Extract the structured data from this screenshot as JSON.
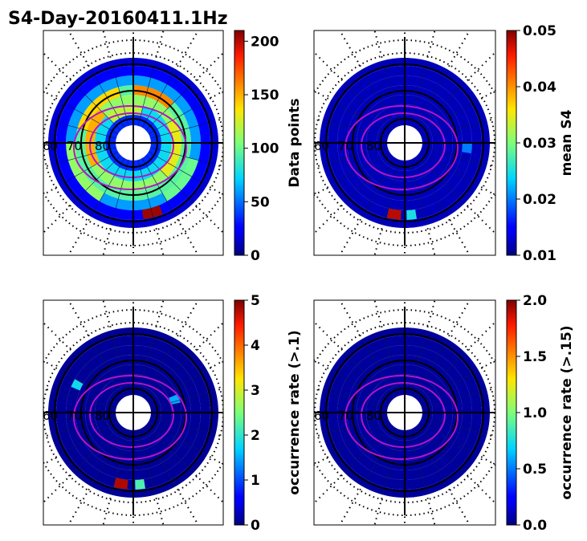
{
  "chart_data": {
    "title": "S4-Day-20160411.1Hz",
    "type": "heatmap",
    "projection": "polar (magnetic latitude / local time)",
    "lat_labels": [
      "60",
      "70",
      "80"
    ],
    "panels": [
      {
        "id": "data-points",
        "colorbar_label": "Data points",
        "vmin": 0,
        "vmax": 210,
        "ticks": [
          0,
          50,
          100,
          150,
          200
        ],
        "tick_labels": [
          "0",
          "50",
          "100",
          "150",
          "200"
        ],
        "cells": [
          {
            "ring": 0,
            "from": 0,
            "to": 24,
            "value": 35
          },
          {
            "ring": 1,
            "from": 0,
            "to": 24,
            "value": 75
          },
          {
            "ring": 1,
            "from": 9,
            "to": 13,
            "value": 120
          },
          {
            "ring": 2,
            "from": 0,
            "to": 24,
            "value": 110
          },
          {
            "ring": 2,
            "from": 4,
            "to": 9,
            "value": 150
          },
          {
            "ring": 2,
            "from": 16,
            "to": 21,
            "value": 130
          },
          {
            "ring": 3,
            "from": 0,
            "to": 24,
            "value": 95
          },
          {
            "ring": 3,
            "from": 7,
            "to": 11,
            "value": 140
          },
          {
            "ring": 3,
            "from": 12,
            "to": 15,
            "value": 160
          },
          {
            "ring": 4,
            "from": 0,
            "to": 24,
            "value": 60
          },
          {
            "ring": 4,
            "from": 2,
            "to": 6,
            "value": 110
          },
          {
            "ring": 4,
            "from": 19,
            "to": 22,
            "value": 100
          },
          {
            "ring": 5,
            "from": 0,
            "to": 24,
            "value": 25
          },
          {
            "ring": 5,
            "from": 22.5,
            "to": 23.5,
            "value": 205
          },
          {
            "ring": 6,
            "from": 0,
            "to": 24,
            "value": 15
          }
        ]
      },
      {
        "id": "mean-s4",
        "colorbar_label": "mean S4",
        "vmin": 0.01,
        "vmax": 0.05,
        "ticks": [
          0.01,
          0.02,
          0.03,
          0.04,
          0.05
        ],
        "tick_labels": [
          "0.01",
          "0.02",
          "0.03",
          "0.04",
          "0.05"
        ],
        "cells": [
          {
            "ring": 0,
            "from": 0,
            "to": 24,
            "value": 0.012
          },
          {
            "ring": 1,
            "from": 0,
            "to": 24,
            "value": 0.012
          },
          {
            "ring": 2,
            "from": 0,
            "to": 24,
            "value": 0.012
          },
          {
            "ring": 3,
            "from": 0,
            "to": 24,
            "value": 0.012
          },
          {
            "ring": 4,
            "from": 0,
            "to": 24,
            "value": 0.012
          },
          {
            "ring": 4,
            "from": 18,
            "to": 18.6,
            "value": 0.02
          },
          {
            "ring": 5,
            "from": 0,
            "to": 24,
            "value": 0.012
          },
          {
            "ring": 5,
            "from": 0.2,
            "to": 0.9,
            "value": 0.048
          },
          {
            "ring": 5,
            "from": 23.4,
            "to": 23.9,
            "value": 0.025
          },
          {
            "ring": 6,
            "from": 0,
            "to": 24,
            "value": 0.012
          }
        ]
      },
      {
        "id": "occurrence-1",
        "colorbar_label": "occurrence rate (>.1)",
        "vmin": 0,
        "vmax": 5,
        "ticks": [
          0,
          1,
          2,
          3,
          4,
          5
        ],
        "tick_labels": [
          "0",
          "1",
          "2",
          "3",
          "4",
          "5"
        ],
        "cells": [
          {
            "ring": 0,
            "from": 0,
            "to": 24,
            "value": 0.1
          },
          {
            "ring": 1,
            "from": 0,
            "to": 24,
            "value": 0.1
          },
          {
            "ring": 2,
            "from": 0,
            "to": 24,
            "value": 0.1
          },
          {
            "ring": 2,
            "from": 16.5,
            "to": 17.2,
            "value": 1.5
          },
          {
            "ring": 3,
            "from": 0,
            "to": 24,
            "value": 0.1
          },
          {
            "ring": 4,
            "from": 0,
            "to": 24,
            "value": 0.1
          },
          {
            "ring": 4,
            "from": 7.5,
            "to": 8,
            "value": 1.8
          },
          {
            "ring": 5,
            "from": 0,
            "to": 24,
            "value": 0.1
          },
          {
            "ring": 5,
            "from": 0.3,
            "to": 1,
            "value": 4.8
          },
          {
            "ring": 5,
            "from": 23.4,
            "to": 23.9,
            "value": 2.2
          },
          {
            "ring": 6,
            "from": 0,
            "to": 24,
            "value": 0.1
          }
        ]
      },
      {
        "id": "occurrence-15",
        "colorbar_label": "occurrence rate (>.15)",
        "vmin": 0,
        "vmax": 2,
        "ticks": [
          0,
          0.5,
          1,
          1.5,
          2
        ],
        "tick_labels": [
          "0.0",
          "0.5",
          "1.0",
          "1.5",
          "2.0"
        ],
        "cells": [
          {
            "ring": 0,
            "from": 0,
            "to": 24,
            "value": 0.05
          },
          {
            "ring": 1,
            "from": 0,
            "to": 24,
            "value": 0.05
          },
          {
            "ring": 2,
            "from": 0,
            "to": 24,
            "value": 0.05
          },
          {
            "ring": 3,
            "from": 0,
            "to": 24,
            "value": 0.05
          },
          {
            "ring": 4,
            "from": 0,
            "to": 24,
            "value": 0.05
          },
          {
            "ring": 5,
            "from": 0,
            "to": 24,
            "value": 0.05
          },
          {
            "ring": 6,
            "from": 0,
            "to": 24,
            "value": 0.05
          }
        ]
      }
    ]
  }
}
